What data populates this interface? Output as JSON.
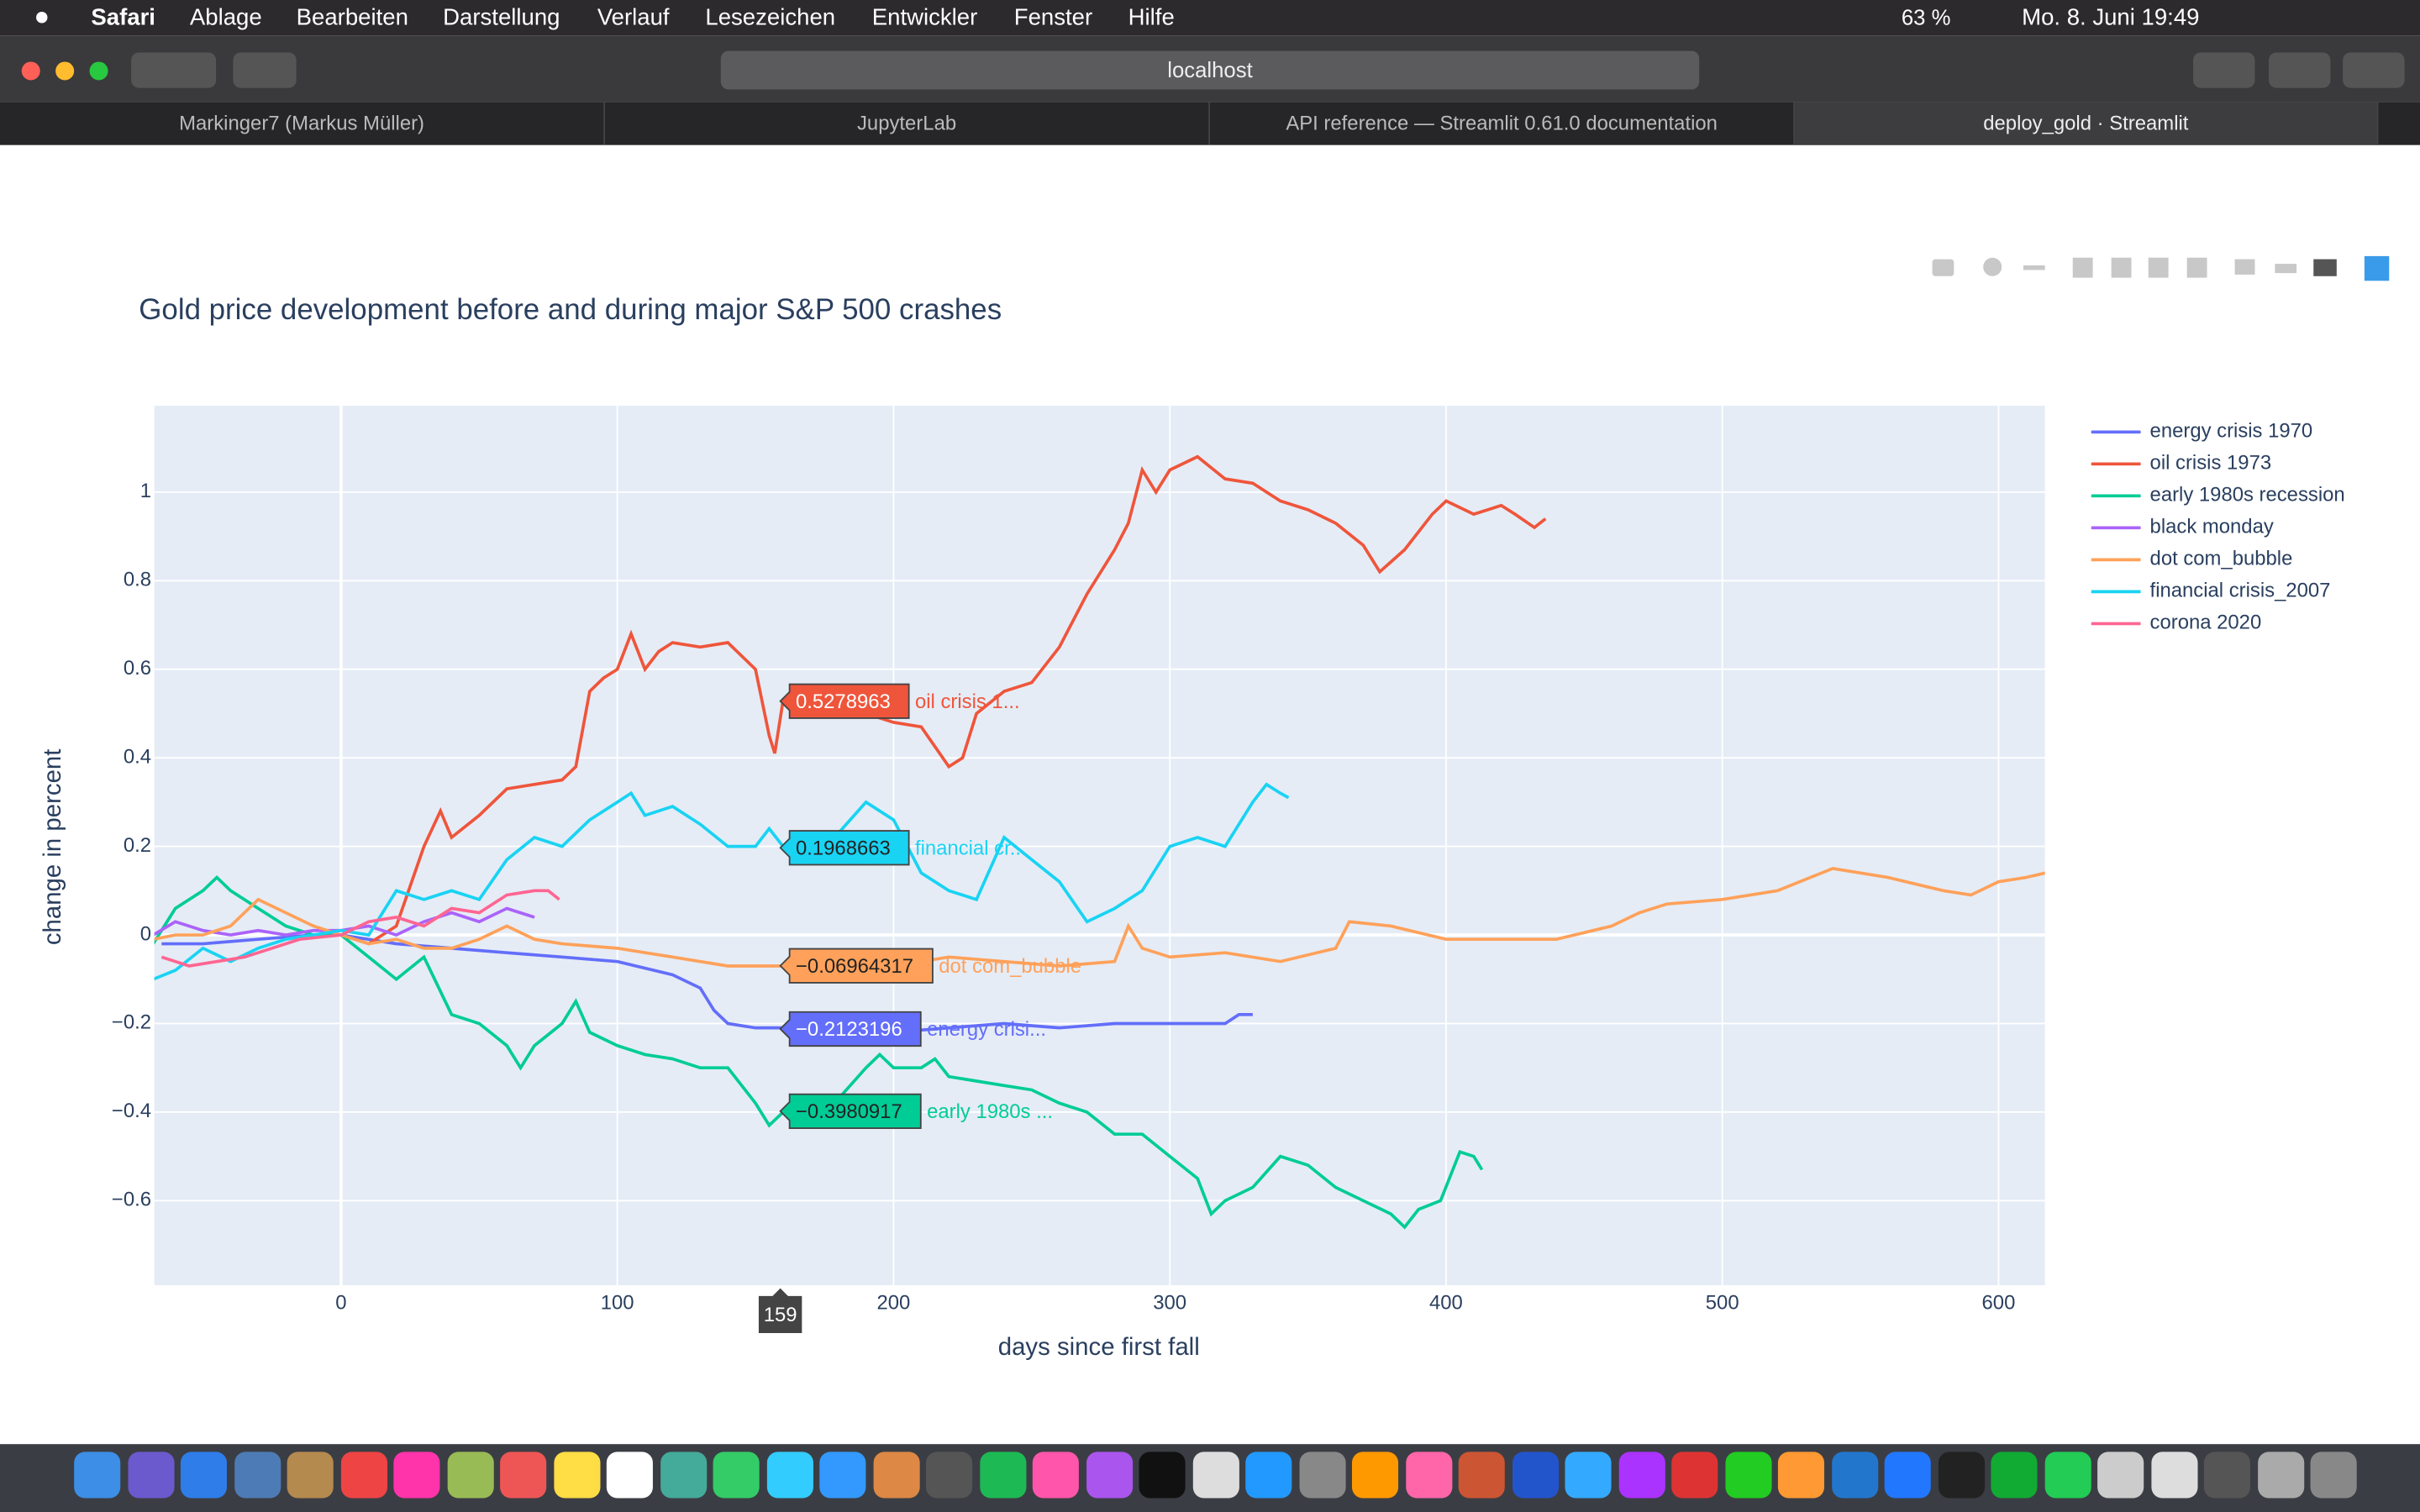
{
  "menubar": {
    "app": "Safari",
    "items": [
      "Ablage",
      "Bearbeiten",
      "Darstellung",
      "Verlauf",
      "Lesezeichen",
      "Entwickler",
      "Fenster",
      "Hilfe"
    ],
    "battery": "63 %",
    "clock": "Mo. 8. Juni 19:49"
  },
  "toolbar": {
    "url": "localhost"
  },
  "tabs": [
    "Markinger7 (Markus Müller)",
    "JupyterLab",
    "API reference — Streamlit 0.61.0 documentation",
    "deploy_gold · Streamlit"
  ],
  "chart_data": {
    "type": "line",
    "title": "Gold price development before and during major S&P 500 crashes",
    "x_label": "days since first fall",
    "y_label": "change in percent",
    "xlim": [
      -67.6,
      616.8
    ],
    "ylim": [
      -0.791,
      1.195
    ],
    "xticks": [
      0,
      100,
      200,
      300,
      400,
      500,
      600
    ],
    "yticks": [
      {
        "value": -0.6,
        "label": "−0.6"
      },
      {
        "value": -0.4,
        "label": "−0.4"
      },
      {
        "value": -0.2,
        "label": "−0.2"
      },
      0,
      0.2,
      0.4,
      0.6,
      0.8,
      1
    ],
    "grid": true,
    "legend": "right",
    "series": [
      {
        "name": "energy crisis 1970",
        "color": "#636efa",
        "x": [
          -65,
          -50,
          -30,
          -10,
          0,
          20,
          40,
          60,
          80,
          100,
          120,
          130,
          135,
          140,
          150,
          160,
          180,
          200,
          220,
          240,
          260,
          280,
          300,
          320,
          325,
          330
        ],
        "values": [
          -0.02,
          -0.02,
          -0.01,
          0,
          0,
          -0.02,
          -0.03,
          -0.04,
          -0.05,
          -0.06,
          -0.09,
          -0.12,
          -0.17,
          -0.2,
          -0.21,
          -0.21,
          -0.22,
          -0.22,
          -0.21,
          -0.2,
          -0.21,
          -0.2,
          -0.2,
          -0.2,
          -0.18,
          -0.18
        ]
      },
      {
        "name": "oil crisis 1973",
        "color": "#ef553b",
        "x": [
          0,
          10,
          20,
          30,
          36,
          40,
          50,
          60,
          70,
          80,
          85,
          90,
          95,
          100,
          105,
          110,
          115,
          120,
          130,
          140,
          150,
          155,
          157,
          160,
          170,
          180,
          190,
          200,
          210,
          220,
          225,
          230,
          240,
          250,
          260,
          270,
          280,
          285,
          290,
          295,
          300,
          310,
          320,
          330,
          340,
          350,
          360,
          370,
          376,
          385,
          395,
          400,
          410,
          420,
          425,
          432,
          436
        ],
        "values": [
          0,
          -0.02,
          0.02,
          0.2,
          0.28,
          0.22,
          0.27,
          0.33,
          0.34,
          0.35,
          0.38,
          0.55,
          0.58,
          0.6,
          0.68,
          0.6,
          0.64,
          0.66,
          0.65,
          0.66,
          0.6,
          0.45,
          0.41,
          0.53,
          0.5,
          0.5,
          0.5,
          0.48,
          0.47,
          0.38,
          0.4,
          0.5,
          0.55,
          0.57,
          0.65,
          0.77,
          0.87,
          0.93,
          1.05,
          1,
          1.05,
          1.08,
          1.03,
          1.02,
          0.98,
          0.96,
          0.93,
          0.88,
          0.82,
          0.87,
          0.95,
          0.98,
          0.95,
          0.97,
          0.95,
          0.92,
          0.94
        ]
      },
      {
        "name": "early 1980s recession",
        "color": "#00cc96",
        "x": [
          -68,
          -60,
          -50,
          -45,
          -40,
          -30,
          -20,
          -10,
          0,
          10,
          20,
          30,
          40,
          50,
          60,
          65,
          70,
          80,
          85,
          90,
          100,
          110,
          120,
          130,
          140,
          150,
          155,
          160,
          170,
          180,
          190,
          195,
          200,
          210,
          215,
          220,
          230,
          240,
          250,
          260,
          270,
          280,
          290,
          300,
          310,
          315,
          320,
          330,
          340,
          350,
          360,
          370,
          380,
          385,
          390,
          398,
          405,
          410,
          413
        ],
        "values": [
          -0.02,
          0.06,
          0.1,
          0.13,
          0.1,
          0.06,
          0.02,
          0,
          0,
          -0.05,
          -0.1,
          -0.05,
          -0.18,
          -0.2,
          -0.25,
          -0.3,
          -0.25,
          -0.2,
          -0.15,
          -0.22,
          -0.25,
          -0.27,
          -0.28,
          -0.3,
          -0.3,
          -0.38,
          -0.43,
          -0.4,
          -0.43,
          -0.37,
          -0.3,
          -0.27,
          -0.3,
          -0.3,
          -0.28,
          -0.32,
          -0.33,
          -0.34,
          -0.35,
          -0.38,
          -0.4,
          -0.45,
          -0.45,
          -0.5,
          -0.55,
          -0.63,
          -0.6,
          -0.57,
          -0.5,
          -0.52,
          -0.57,
          -0.6,
          -0.63,
          -0.66,
          -0.62,
          -0.6,
          -0.49,
          -0.5,
          -0.53
        ]
      },
      {
        "name": "black monday",
        "color": "#ab63fa",
        "x": [
          -68,
          -60,
          -50,
          -40,
          -30,
          -20,
          -10,
          0,
          10,
          20,
          30,
          40,
          50,
          60,
          70
        ],
        "values": [
          0,
          0.03,
          0.01,
          0,
          0.01,
          0,
          0.01,
          0.01,
          0.02,
          0,
          0.03,
          0.05,
          0.03,
          0.06,
          0.04
        ]
      },
      {
        "name": "dot com_bubble",
        "color": "#ffa15a",
        "x": [
          -68,
          -60,
          -50,
          -40,
          -30,
          -20,
          -10,
          0,
          10,
          20,
          30,
          40,
          50,
          60,
          70,
          80,
          100,
          120,
          140,
          160,
          180,
          200,
          220,
          240,
          260,
          280,
          285,
          290,
          300,
          320,
          340,
          360,
          365,
          380,
          400,
          420,
          440,
          460,
          470,
          480,
          500,
          520,
          540,
          560,
          580,
          590,
          600,
          610,
          617
        ],
        "values": [
          -0.01,
          0,
          0,
          0.02,
          0.08,
          0.05,
          0.02,
          0,
          -0.02,
          -0.01,
          -0.03,
          -0.03,
          -0.01,
          0.02,
          -0.01,
          -0.02,
          -0.03,
          -0.05,
          -0.07,
          -0.07,
          -0.06,
          -0.07,
          -0.05,
          -0.06,
          -0.07,
          -0.06,
          0.02,
          -0.03,
          -0.05,
          -0.04,
          -0.06,
          -0.03,
          0.03,
          0.02,
          -0.01,
          -0.01,
          -0.01,
          0.02,
          0.05,
          0.07,
          0.08,
          0.1,
          0.15,
          0.13,
          0.1,
          0.09,
          0.12,
          0.13,
          0.14
        ]
      },
      {
        "name": "financial crisis_2007",
        "color": "#19d3f3",
        "x": [
          -68,
          -60,
          -50,
          -40,
          -30,
          -20,
          -10,
          0,
          10,
          20,
          30,
          40,
          50,
          60,
          70,
          80,
          90,
          100,
          105,
          110,
          120,
          130,
          140,
          150,
          155,
          160,
          170,
          180,
          190,
          200,
          210,
          220,
          230,
          240,
          250,
          260,
          270,
          280,
          290,
          300,
          310,
          320,
          330,
          335,
          340,
          343
        ],
        "values": [
          -0.1,
          -0.08,
          -0.03,
          -0.06,
          -0.03,
          -0.01,
          0,
          0.01,
          0,
          0.1,
          0.08,
          0.1,
          0.08,
          0.17,
          0.22,
          0.2,
          0.26,
          0.3,
          0.32,
          0.27,
          0.29,
          0.25,
          0.2,
          0.2,
          0.24,
          0.2,
          0.2,
          0.23,
          0.3,
          0.26,
          0.14,
          0.1,
          0.08,
          0.22,
          0.17,
          0.12,
          0.03,
          0.06,
          0.1,
          0.2,
          0.22,
          0.2,
          0.3,
          0.34,
          0.32,
          0.31
        ]
      },
      {
        "name": "corona 2020",
        "color": "#ff6692",
        "x": [
          -65,
          -55,
          -45,
          -35,
          -25,
          -15,
          0,
          10,
          20,
          30,
          40,
          50,
          60,
          70,
          75,
          79
        ],
        "values": [
          -0.05,
          -0.07,
          -0.06,
          -0.05,
          -0.03,
          -0.01,
          0,
          0.03,
          0.04,
          0.02,
          0.06,
          0.05,
          0.09,
          0.1,
          0.1,
          0.08
        ]
      }
    ],
    "hover": {
      "x": 159,
      "labels": [
        {
          "value": 0.5278963,
          "label": "0.5278963",
          "name": "oil crisis 1...",
          "color": "#ef553b"
        },
        {
          "value": 0.1968663,
          "label": "0.1968663",
          "name": "financial cr...",
          "color": "#19d3f3"
        },
        {
          "value": -0.06964317,
          "label": "−0.06964317",
          "name": "dot com_bubble",
          "color": "#ffa15a"
        },
        {
          "value": -0.2123196,
          "label": "−0.2123196",
          "name": "energy crisi...",
          "color": "#636efa"
        },
        {
          "value": -0.3980917,
          "label": "−0.3980917",
          "name": "early 1980s ...",
          "color": "#00cc96"
        }
      ]
    }
  }
}
